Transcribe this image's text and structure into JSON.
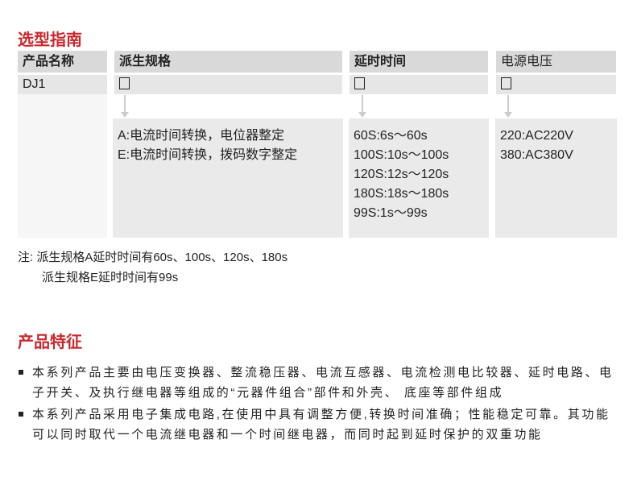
{
  "selection_guide": {
    "title": "选型指南",
    "headers": [
      "产品名称",
      "派生规格",
      "延时时间",
      "电源电压"
    ],
    "row": {
      "product": "DJ1",
      "placeholder": "□"
    },
    "variants": [
      "A:电流时间转换，电位器整定",
      "E:电流时间转换，拨码数字整定"
    ],
    "delays": [
      "60S:6s～60s",
      "100S:10s～100s",
      "120S:12s～120s",
      "180S:18s～180s",
      "99S:1s～99s"
    ],
    "voltages": [
      "220:AC220V",
      "380:AC380V"
    ],
    "notes": [
      "注: 派生规格A延时时间有60s、100s、120s、180s",
      "派生规格E延时时间有99s"
    ]
  },
  "features": {
    "title": "产品特征",
    "items": [
      [
        "本系列产品主要由电压变换器、整流稳压器、电流互感器、电流检测电比较器、延时电路、电",
        "子开关、及执行继电器等组成的“元器件组合”部件和外壳、 底座等部件组成"
      ],
      [
        "本系列产品采用电子集成电路,在使用中具有调整方便,转换时间准确；性能稳定可靠。其功能",
        "可以同时取代一个电流继电器和一个时间继电器，而同时起到延时保护的双重功能"
      ]
    ]
  }
}
